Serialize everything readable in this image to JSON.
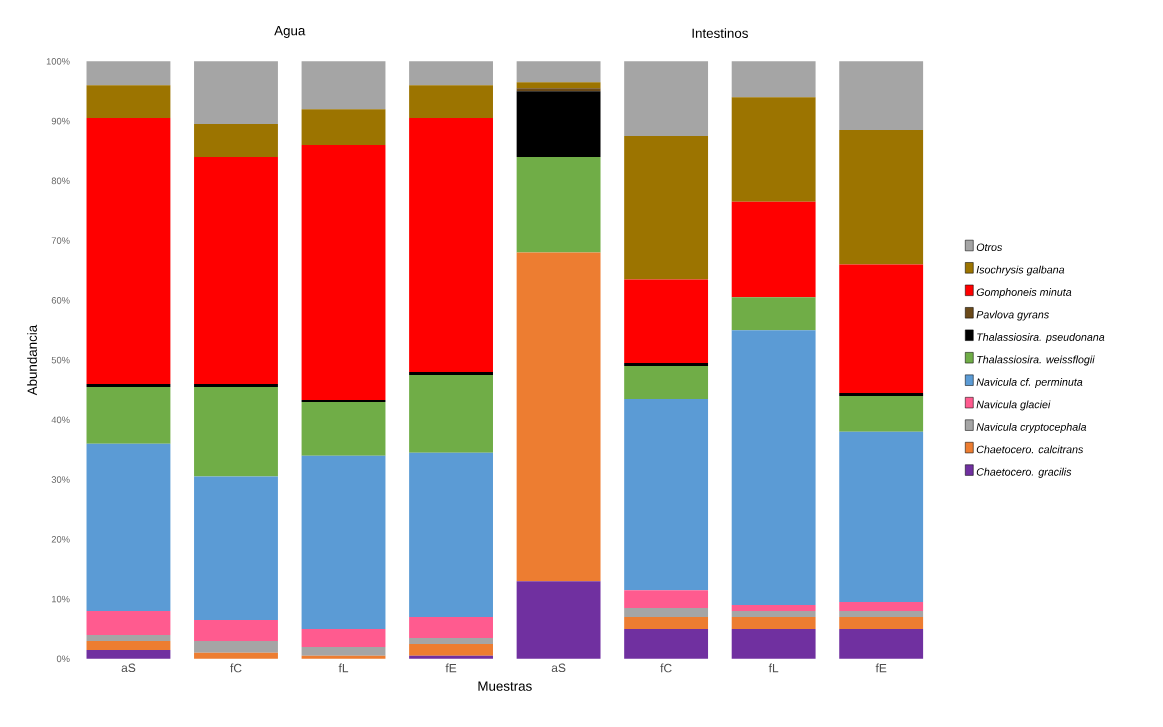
{
  "chart_data": {
    "type": "bar",
    "stacked": true,
    "xlabel": "Muestras",
    "ylabel": "Abundancia",
    "annotations": [
      "Agua",
      "Intestinos"
    ],
    "categories": [
      "aS",
      "fC",
      "fL",
      "fE",
      "aS",
      "fC",
      "fL",
      "fE"
    ],
    "ylim": [
      0,
      100
    ],
    "yticks": [
      {
        "value": 0,
        "label": "0%"
      },
      {
        "value": 10,
        "label": "10%"
      },
      {
        "value": 20,
        "label": "20%"
      },
      {
        "value": 30,
        "label": "30%"
      },
      {
        "value": 40,
        "label": "40%"
      },
      {
        "value": 50,
        "label": "50%"
      },
      {
        "value": 60,
        "label": "60%"
      },
      {
        "value": 70,
        "label": "70%"
      },
      {
        "value": 80,
        "label": "80%"
      },
      {
        "value": 90,
        "label": "90%"
      },
      {
        "value": 100,
        "label": "100%"
      }
    ],
    "legend": "right",
    "grid": false,
    "series": [
      {
        "name": "Chaetocero. gracilis",
        "color": "#7030a0",
        "values": [
          1.5,
          0,
          0,
          0.5,
          13,
          5,
          5,
          5
        ]
      },
      {
        "name": "Chaetocero. calcitrans",
        "color": "#ed7d31",
        "values": [
          1.5,
          1,
          0.5,
          2,
          55,
          2,
          2,
          2
        ]
      },
      {
        "name": "Navicula cryptocephala",
        "color": "#a5a5a5",
        "values": [
          1,
          2,
          1.5,
          1,
          0,
          1.5,
          1,
          1
        ]
      },
      {
        "name": "Navicula glaciei",
        "color": "#ff5b8f",
        "values": [
          4,
          3.5,
          3,
          3.5,
          0,
          3,
          1,
          1.5
        ]
      },
      {
        "name": "Navicula cf. perminuta",
        "color": "#5b9bd5",
        "values": [
          28,
          24,
          29,
          27.5,
          0,
          32,
          46,
          28.5
        ]
      },
      {
        "name": "Thalassiosira. weissflogii",
        "color": "#70ad47",
        "values": [
          9.5,
          15,
          9,
          13,
          16,
          5.5,
          5.5,
          6
        ]
      },
      {
        "name": "Thalassiosira. pseudonana",
        "color": "#000000",
        "values": [
          0.5,
          0.5,
          0.3,
          0.5,
          11,
          0.5,
          0,
          0.5
        ]
      },
      {
        "name": "Pavlova gyrans",
        "color": "#6b4a1a",
        "values": [
          0,
          0,
          0,
          0,
          0.5,
          0,
          0,
          0
        ]
      },
      {
        "name": "Gomphoneis minuta",
        "color": "#ff0000",
        "values": [
          44.5,
          38,
          42.7,
          42.5,
          0,
          14,
          16,
          21.5
        ]
      },
      {
        "name": "Isochrysis galbana",
        "color": "#9c7400",
        "values": [
          5.5,
          5.5,
          6,
          5.5,
          1,
          24,
          17.5,
          22.5
        ]
      },
      {
        "name": "Otros",
        "color": "#a5a5a5",
        "values": [
          4,
          10.5,
          8,
          4,
          3.5,
          12.5,
          6,
          11.5
        ]
      }
    ]
  }
}
